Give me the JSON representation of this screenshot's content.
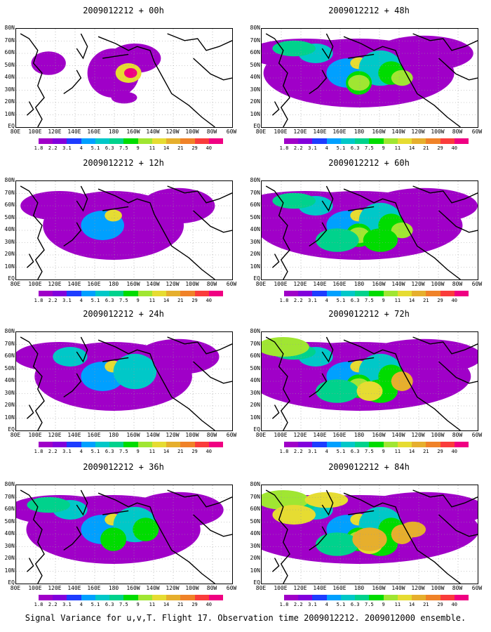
{
  "panels": [
    {
      "title": "2009012212 + 00h",
      "fill": 0
    },
    {
      "title": "2009012212 + 48h",
      "fill": 4
    },
    {
      "title": "2009012212 + 12h",
      "fill": 1
    },
    {
      "title": "2009012212 + 60h",
      "fill": 5
    },
    {
      "title": "2009012212 + 24h",
      "fill": 2
    },
    {
      "title": "2009012212 + 72h",
      "fill": 6
    },
    {
      "title": "2009012212 + 36h",
      "fill": 3
    },
    {
      "title": "2009012212 + 84h",
      "fill": 7
    }
  ],
  "lat_labels": [
    "80N",
    "70N",
    "60N",
    "50N",
    "40N",
    "30N",
    "20N",
    "10N",
    "EQ"
  ],
  "lon_labels": [
    "80E",
    "100E",
    "120E",
    "140E",
    "160E",
    "180",
    "160W",
    "140W",
    "120W",
    "100W",
    "80W",
    "60W"
  ],
  "colorbar": {
    "labels": [
      "1.8",
      "2.2",
      "3.1",
      "4",
      "5.1",
      "6.3",
      "7.5",
      "9",
      "11",
      "14",
      "21",
      "29",
      "40"
    ],
    "colors": [
      "#a000c8",
      "#8200dc",
      "#1e3cff",
      "#00a0ff",
      "#00c8c8",
      "#00d28c",
      "#00dc00",
      "#a0e632",
      "#e6dc32",
      "#e6af2d",
      "#f08228",
      "#fa3c3c",
      "#f00082"
    ]
  },
  "footer": "Signal Variance for u,v,T. Flight 17. Observation time 2009012212. 2009012000 ensemble."
}
